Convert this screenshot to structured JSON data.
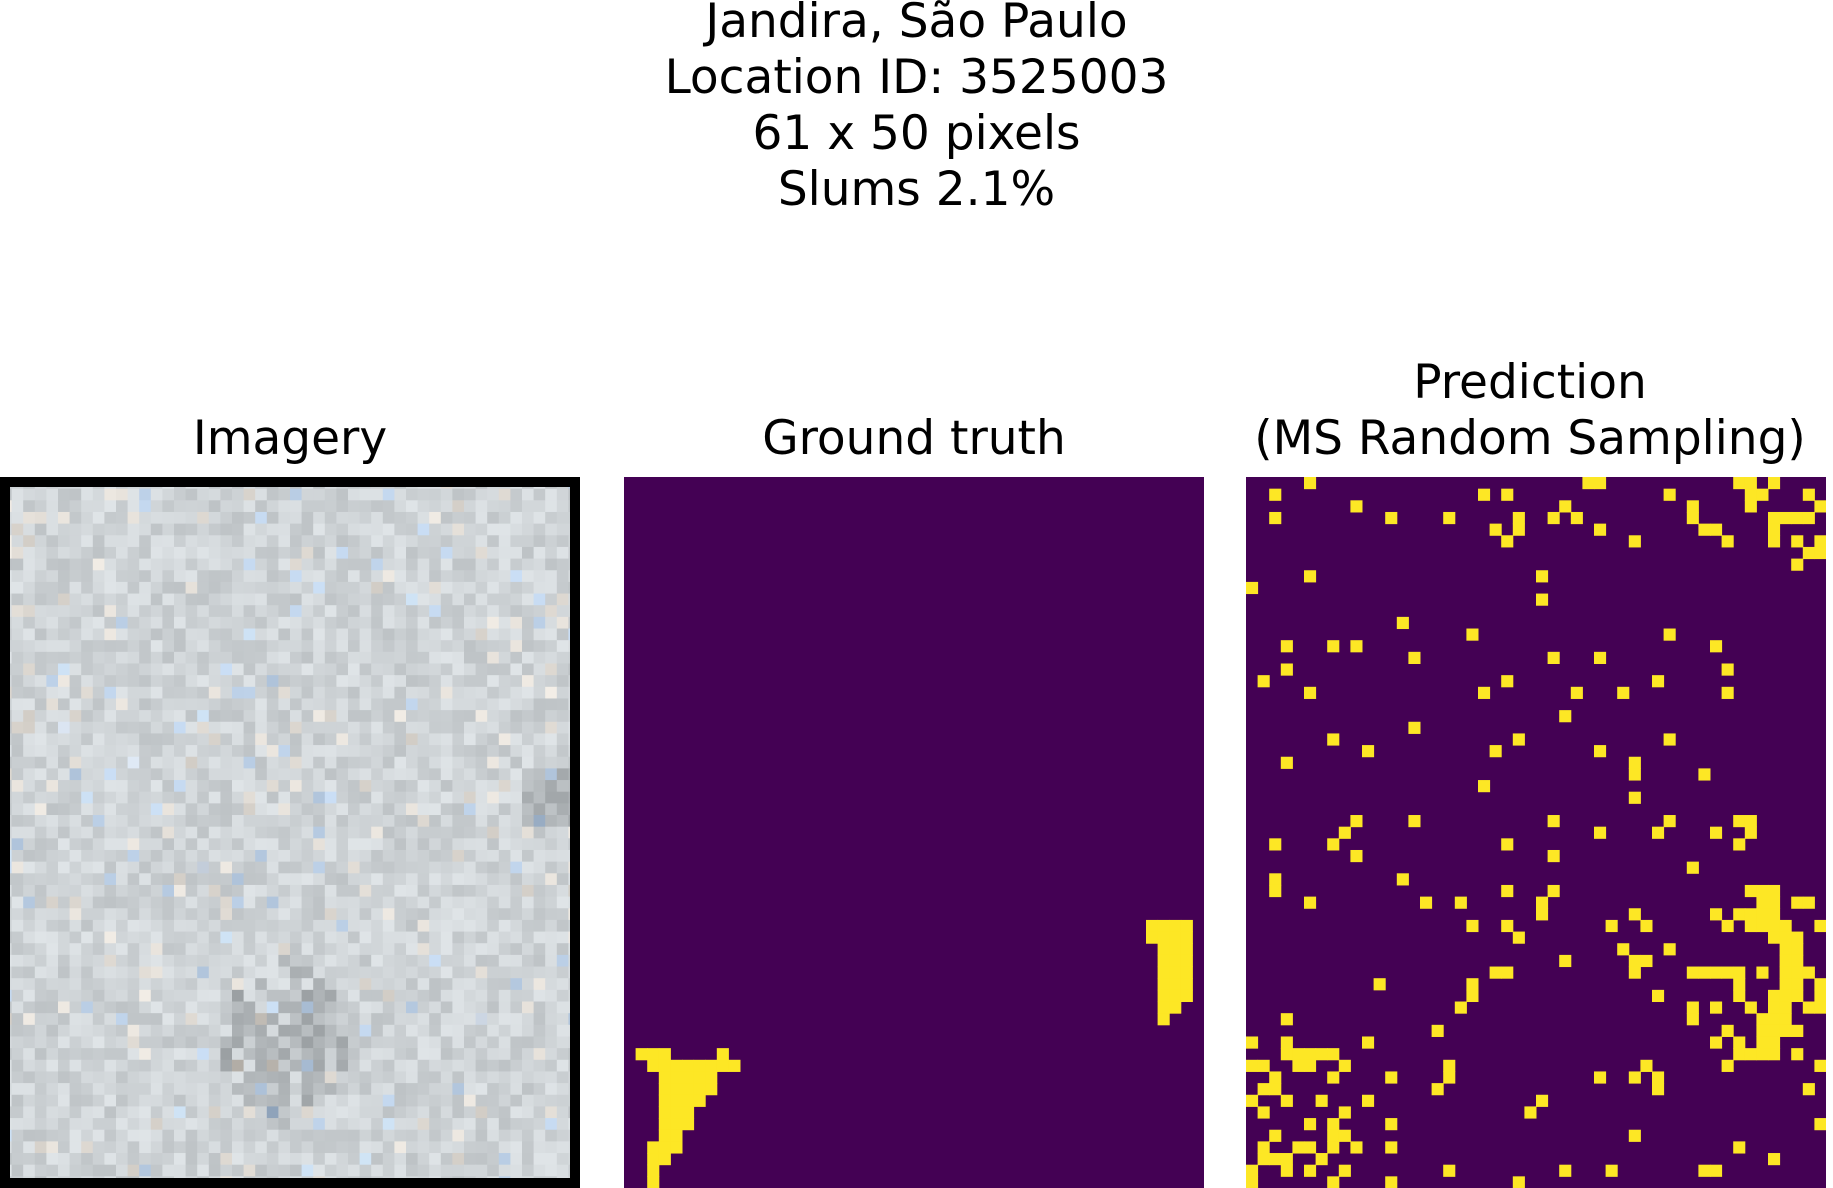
{
  "suptitle": {
    "line1": "Jandira, São Paulo",
    "line2": "Location ID: 3525003",
    "line3": "61 x 50 pixels",
    "line4": "Slums 2.1%"
  },
  "panels": {
    "imagery_title": "Imagery",
    "ground_truth_title": "Ground truth",
    "prediction_title_1": "Prediction",
    "prediction_title_2": "(MS Random Sampling)"
  },
  "colors": {
    "background_class": "#440154",
    "slum_class": "#fde725",
    "imagery_base": "#cfd6d8",
    "imagery_border": "#000000"
  }
}
